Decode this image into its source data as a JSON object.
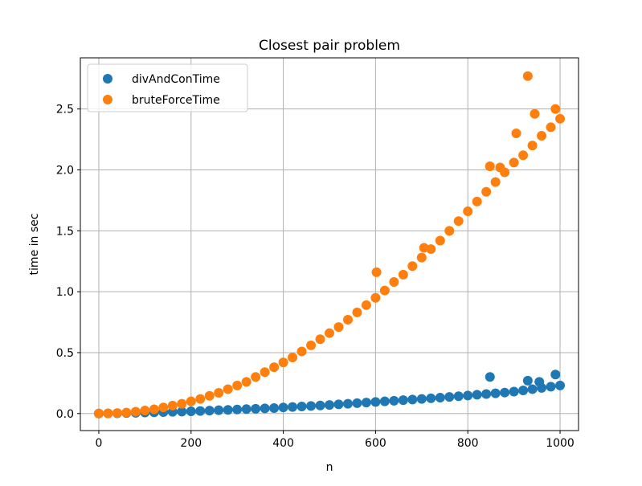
{
  "chart_data": {
    "type": "scatter",
    "title": "Closest pair problem",
    "xlabel": "n",
    "ylabel": "time in sec",
    "xlim": [
      -40,
      1040
    ],
    "ylim": [
      -0.14,
      2.92
    ],
    "xticks": [
      0,
      200,
      400,
      600,
      800,
      1000
    ],
    "yticks": [
      0.0,
      0.5,
      1.0,
      1.5,
      2.0,
      2.5
    ],
    "xtick_labels": [
      "0",
      "200",
      "400",
      "600",
      "800",
      "1000"
    ],
    "ytick_labels": [
      "0.0",
      "0.5",
      "1.0",
      "1.5",
      "2.0",
      "2.5"
    ],
    "grid": true,
    "legend_position": "top-left",
    "series": [
      {
        "name": "divAndConTime",
        "color": "#1f77b4",
        "x": [
          0,
          20,
          40,
          60,
          80,
          100,
          120,
          140,
          160,
          180,
          200,
          220,
          240,
          260,
          280,
          300,
          320,
          340,
          360,
          380,
          400,
          420,
          440,
          460,
          480,
          500,
          520,
          540,
          560,
          580,
          600,
          620,
          640,
          660,
          680,
          700,
          720,
          740,
          760,
          780,
          800,
          820,
          840,
          860,
          880,
          900,
          920,
          940,
          960,
          980,
          1000,
          848,
          990,
          930,
          955
        ],
        "y": [
          0.0,
          0.001,
          0.002,
          0.004,
          0.006,
          0.008,
          0.01,
          0.012,
          0.014,
          0.016,
          0.018,
          0.021,
          0.024,
          0.027,
          0.03,
          0.033,
          0.036,
          0.039,
          0.042,
          0.045,
          0.05,
          0.054,
          0.058,
          0.062,
          0.066,
          0.07,
          0.075,
          0.08,
          0.085,
          0.09,
          0.095,
          0.1,
          0.105,
          0.11,
          0.115,
          0.12,
          0.125,
          0.13,
          0.136,
          0.142,
          0.148,
          0.154,
          0.16,
          0.166,
          0.172,
          0.18,
          0.19,
          0.2,
          0.21,
          0.22,
          0.23,
          0.3,
          0.32,
          0.27,
          0.26
        ]
      },
      {
        "name": "bruteForceTime",
        "color": "#ff7f0e",
        "x": [
          0,
          20,
          40,
          60,
          80,
          100,
          120,
          140,
          160,
          180,
          200,
          220,
          240,
          260,
          280,
          300,
          320,
          340,
          360,
          380,
          400,
          420,
          440,
          460,
          480,
          500,
          520,
          540,
          560,
          580,
          600,
          620,
          640,
          660,
          680,
          700,
          720,
          740,
          760,
          780,
          800,
          820,
          840,
          860,
          880,
          900,
          920,
          940,
          960,
          980,
          1000,
          602,
          705,
          848,
          870,
          905,
          930,
          945,
          990
        ],
        "y": [
          0.0,
          0.001,
          0.004,
          0.008,
          0.015,
          0.025,
          0.035,
          0.05,
          0.065,
          0.08,
          0.1,
          0.12,
          0.145,
          0.17,
          0.2,
          0.23,
          0.26,
          0.3,
          0.34,
          0.38,
          0.42,
          0.46,
          0.51,
          0.56,
          0.61,
          0.66,
          0.71,
          0.77,
          0.83,
          0.89,
          0.95,
          1.01,
          1.08,
          1.14,
          1.21,
          1.28,
          1.35,
          1.42,
          1.5,
          1.58,
          1.66,
          1.74,
          1.82,
          1.9,
          1.98,
          2.06,
          2.12,
          2.2,
          2.28,
          2.35,
          2.42,
          1.16,
          1.36,
          2.03,
          2.02,
          2.3,
          2.77,
          2.46,
          2.5
        ]
      }
    ]
  }
}
